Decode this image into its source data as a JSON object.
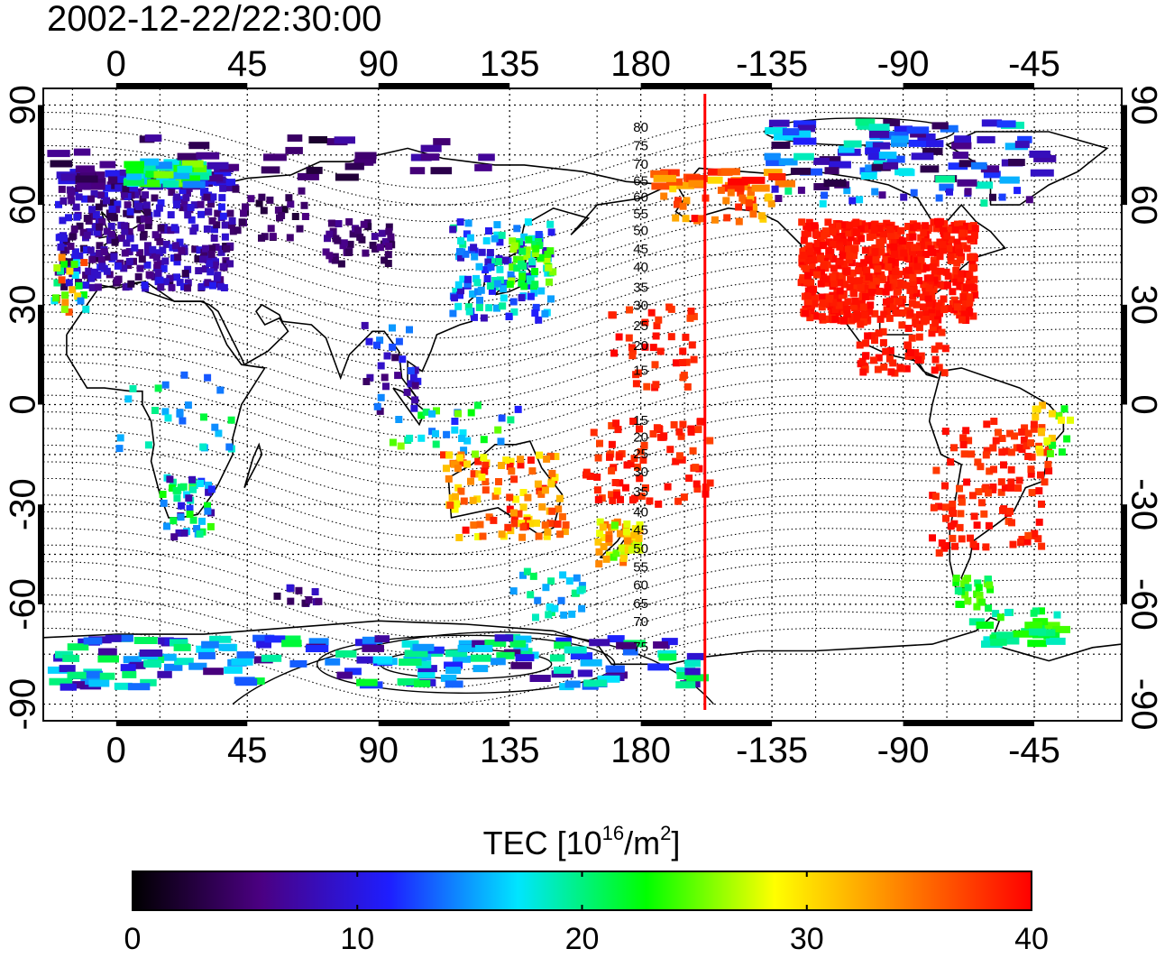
{
  "timestamp": "2002-12-22/22:30:00",
  "map": {
    "lon_range": [
      -25,
      345
    ],
    "lat_range": [
      -95,
      95
    ],
    "lon_ticks": [
      {
        "value": 0,
        "label": "0"
      },
      {
        "value": 45,
        "label": "45"
      },
      {
        "value": 90,
        "label": "90"
      },
      {
        "value": 135,
        "label": "135"
      },
      {
        "value": 180,
        "label": "180"
      },
      {
        "value": 225,
        "label": "-135"
      },
      {
        "value": 270,
        "label": "-90"
      },
      {
        "value": 315,
        "label": "-45"
      }
    ],
    "lat_ticks": [
      {
        "value": 90,
        "label": "90"
      },
      {
        "value": 60,
        "label": "60"
      },
      {
        "value": 30,
        "label": "30"
      },
      {
        "value": 0,
        "label": "0"
      },
      {
        "value": -30,
        "label": "-30"
      },
      {
        "value": -60,
        "label": "-60"
      },
      {
        "value": -90,
        "label": "-90"
      }
    ],
    "grid": true,
    "terminator_lon": 202,
    "terminator_color": "#ff0000",
    "contour_labels": [
      {
        "label": "80",
        "lon": 180,
        "lat": 83
      },
      {
        "label": "75",
        "lon": 180,
        "lat": 77.5
      },
      {
        "label": "70",
        "lon": 180,
        "lat": 72
      },
      {
        "label": "65",
        "lon": 180,
        "lat": 67
      },
      {
        "label": "60",
        "lon": 180,
        "lat": 62
      },
      {
        "label": "55",
        "lon": 180,
        "lat": 57
      },
      {
        "label": "50",
        "lon": 180,
        "lat": 52
      },
      {
        "label": "45",
        "lon": 180,
        "lat": 46.5
      },
      {
        "label": "40",
        "lon": 180,
        "lat": 41
      },
      {
        "label": "35",
        "lon": 180,
        "lat": 35
      },
      {
        "label": "30",
        "lon": 180,
        "lat": 29.5
      },
      {
        "label": "25",
        "lon": 180,
        "lat": 23.5
      },
      {
        "label": "20",
        "lon": 180,
        "lat": 17.5
      },
      {
        "label": "15",
        "lon": 180,
        "lat": 10
      },
      {
        "label": "15",
        "lon": 180,
        "lat": -5
      },
      {
        "label": "20",
        "lon": 180,
        "lat": -10
      },
      {
        "label": "25",
        "lon": 180,
        "lat": -15
      },
      {
        "label": "30",
        "lon": 180,
        "lat": -20.5
      },
      {
        "label": "35",
        "lon": 180,
        "lat": -26.5
      },
      {
        "label": "40",
        "lon": 180,
        "lat": -32.5
      },
      {
        "label": "45",
        "lon": 180,
        "lat": -38
      },
      {
        "label": "50",
        "lon": 180,
        "lat": -43.5
      },
      {
        "label": "55",
        "lon": 180,
        "lat": -49
      },
      {
        "label": "60",
        "lon": 180,
        "lat": -54.5
      },
      {
        "label": "65",
        "lon": 180,
        "lat": -60
      },
      {
        "label": "70",
        "lon": 180,
        "lat": -65.5
      },
      {
        "label": "75",
        "lon": 180,
        "lat": -73
      }
    ]
  },
  "colorbar": {
    "title_main": "TEC  [10",
    "title_exp1": "16",
    "title_mid": "/m",
    "title_exp2": "2",
    "title_end": "]",
    "min": 0,
    "max": 40,
    "ticks": [
      {
        "value": 0,
        "label": "0"
      },
      {
        "value": 10,
        "label": "10"
      },
      {
        "value": 20,
        "label": "20"
      },
      {
        "value": 30,
        "label": "30"
      },
      {
        "value": 40,
        "label": "40"
      }
    ],
    "stops": [
      "#000000",
      "#4b0082",
      "#1e1eff",
      "#00e5ff",
      "#00ff00",
      "#ffff00",
      "#ff8000",
      "#ff0000"
    ]
  },
  "regions": [
    {
      "name": "europe",
      "lon": [
        -20,
        40
      ],
      "lat": [
        35,
        70
      ],
      "tec": [
        3,
        11
      ],
      "n": 380
    },
    {
      "name": "europe-north",
      "lon": [
        5,
        30
      ],
      "lat": [
        66,
        73
      ],
      "tec": [
        14,
        26
      ],
      "n": 40
    },
    {
      "name": "iberia-west",
      "lon": [
        -22,
        -10
      ],
      "lat": [
        26,
        45
      ],
      "tec": [
        14,
        38
      ],
      "n": 25
    },
    {
      "name": "western-russia",
      "lon": [
        40,
        65
      ],
      "lat": [
        50,
        65
      ],
      "tec": [
        2,
        6
      ],
      "n": 30
    },
    {
      "name": "central-asia",
      "lon": [
        72,
        95
      ],
      "lat": [
        42,
        55
      ],
      "tec": [
        3,
        7
      ],
      "n": 45
    },
    {
      "name": "siberia-north",
      "lon": [
        -20,
        130
      ],
      "lat": [
        68,
        82
      ],
      "tec": [
        2,
        8
      ],
      "n": 35
    },
    {
      "name": "east-asia",
      "lon": [
        115,
        150
      ],
      "lat": [
        25,
        55
      ],
      "tec": [
        8,
        20
      ],
      "n": 120
    },
    {
      "name": "japan",
      "lon": [
        135,
        150
      ],
      "lat": [
        35,
        50
      ],
      "tec": [
        18,
        27
      ],
      "n": 45
    },
    {
      "name": "south-asia",
      "lon": [
        85,
        105
      ],
      "lat": [
        -5,
        25
      ],
      "tec": [
        4,
        15
      ],
      "n": 30
    },
    {
      "name": "indonesia",
      "lon": [
        95,
        140
      ],
      "lat": [
        -15,
        0
      ],
      "tec": [
        10,
        26
      ],
      "n": 30
    },
    {
      "name": "africa-east",
      "lon": [
        0,
        40
      ],
      "lat": [
        -15,
        15
      ],
      "tec": [
        12,
        22
      ],
      "n": 25
    },
    {
      "name": "southern-africa",
      "lon": [
        15,
        35
      ],
      "lat": [
        -40,
        -22
      ],
      "tec": [
        6,
        26
      ],
      "n": 45
    },
    {
      "name": "australia",
      "lon": [
        112,
        155
      ],
      "lat": [
        -40,
        -15
      ],
      "tec": [
        28,
        40
      ],
      "n": 110
    },
    {
      "name": "new-zealand",
      "lon": [
        165,
        180
      ],
      "lat": [
        -48,
        -35
      ],
      "tec": [
        24,
        36
      ],
      "n": 50
    },
    {
      "name": "pacific-south",
      "lon": [
        160,
        205
      ],
      "lat": [
        -30,
        -5
      ],
      "tec": [
        37,
        40
      ],
      "n": 80
    },
    {
      "name": "pacific-north",
      "lon": [
        170,
        200
      ],
      "lat": [
        5,
        30
      ],
      "tec": [
        37,
        40
      ],
      "n": 40
    },
    {
      "name": "alaska",
      "lon": [
        185,
        230
      ],
      "lat": [
        55,
        70
      ],
      "tec": [
        30,
        40
      ],
      "n": 60
    },
    {
      "name": "north-america",
      "lon": [
        235,
        295
      ],
      "lat": [
        25,
        55
      ],
      "tec": [
        38,
        40
      ],
      "n": 700
    },
    {
      "name": "canada-north",
      "lon": [
        225,
        320
      ],
      "lat": [
        60,
        85
      ],
      "tec": [
        3,
        20
      ],
      "n": 110
    },
    {
      "name": "central-america",
      "lon": [
        255,
        285
      ],
      "lat": [
        8,
        25
      ],
      "tec": [
        38,
        40
      ],
      "n": 60
    },
    {
      "name": "south-america",
      "lon": [
        280,
        320
      ],
      "lat": [
        -45,
        -5
      ],
      "tec": [
        37,
        40
      ],
      "n": 120
    },
    {
      "name": "brazil-east",
      "lon": [
        315,
        330
      ],
      "lat": [
        -15,
        0
      ],
      "tec": [
        22,
        34
      ],
      "n": 20
    },
    {
      "name": "patagonia",
      "lon": [
        288,
        300
      ],
      "lat": [
        -62,
        -52
      ],
      "tec": [
        20,
        26
      ],
      "n": 25
    },
    {
      "name": "antarctic-peninsula",
      "lon": [
        295,
        325
      ],
      "lat": [
        -72,
        -62
      ],
      "tec": [
        18,
        25
      ],
      "n": 30
    },
    {
      "name": "antarctica-ring",
      "lon": [
        -20,
        200
      ],
      "lat": [
        -85,
        -70
      ],
      "tec": [
        5,
        22
      ],
      "n": 170
    },
    {
      "name": "southern-ocean",
      "lon": [
        135,
        160
      ],
      "lat": [
        -65,
        -50
      ],
      "tec": [
        14,
        22
      ],
      "n": 25
    },
    {
      "name": "kerguelen-south",
      "lon": [
        55,
        75
      ],
      "lat": [
        -60,
        -55
      ],
      "tec": [
        3,
        10
      ],
      "n": 12
    }
  ]
}
